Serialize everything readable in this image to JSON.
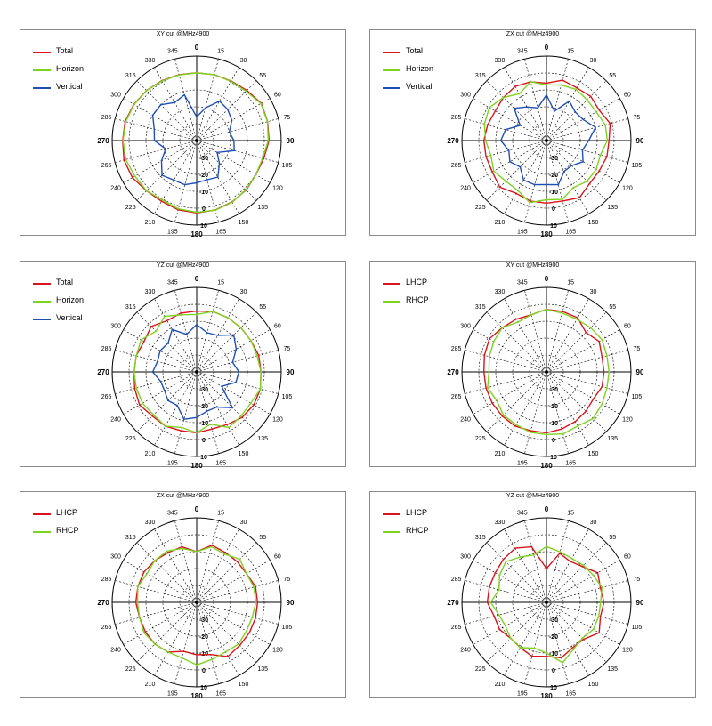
{
  "colors": {
    "Total": "#d9141c",
    "Horizon": "#7ed321",
    "Vertical": "#1f4fb5",
    "LHCP": "#d9141c",
    "RHCP": "#7ed321"
  },
  "angle_labels": [
    "0",
    "15",
    "30",
    "55",
    "60",
    "75",
    "90",
    "105",
    "120",
    "135",
    "150",
    "165",
    "180",
    "195",
    "210",
    "225",
    "240",
    "265",
    "270",
    "285",
    "300",
    "315",
    "330",
    "345"
  ],
  "ring_labels": [
    "-30",
    "-20",
    "-10",
    "0",
    "10"
  ],
  "chart_data": [
    {
      "type": "polar-line",
      "title": "XY cut @MHz4900",
      "series": [
        {
          "name": "Total",
          "values": [
            0.1,
            0.4,
            0.7,
            2.0,
            4.1,
            3.4,
            2.8,
            1.1,
            0.4,
            1.4,
            1.9,
            2.5,
            2.8,
            2.4,
            1.5,
            2.0,
            3.9,
            4.5,
            3.8,
            3.8,
            2.9,
            1.9,
            1.0,
            0.4
          ]
        },
        {
          "name": "Horizon",
          "values": [
            0.0,
            0.4,
            0.5,
            1.3,
            3.8,
            3.3,
            2.3,
            0.4,
            0.4,
            1.1,
            2.1,
            2.6,
            2.4,
            1.8,
            0.6,
            1.9,
            2.2,
            3.4,
            3.6,
            3.4,
            2.7,
            1.8,
            0.8,
            0.2
          ]
        },
        {
          "name": "Vertical",
          "values": [
            -26,
            -20,
            -13,
            -14,
            -16,
            -20,
            -18,
            -17,
            -26,
            -21,
            -15,
            -16,
            -15,
            -13,
            -13,
            -11,
            -16,
            -21,
            -15,
            -14,
            -10,
            -10,
            -14,
            -12
          ]
        }
      ]
    },
    {
      "type": "polar-line",
      "title": "ZX cut @MHz4900",
      "series": [
        {
          "name": "Total",
          "values": [
            -6,
            -3,
            -4,
            -3,
            -4,
            -1,
            -3,
            -3,
            -4,
            -4,
            -1,
            -3,
            -3,
            -3,
            -4,
            -1,
            -3,
            -3,
            -3,
            -4,
            -5,
            -4,
            -3,
            -4
          ]
        },
        {
          "name": "Horizon",
          "values": [
            -7,
            -6,
            -5,
            -6,
            -6,
            -4,
            -4,
            -7,
            -6,
            -6,
            -8,
            -4,
            -5,
            -2,
            -6,
            -6,
            -4,
            -6,
            -4,
            -2,
            -1,
            -4,
            -8,
            -4
          ]
        },
        {
          "name": "Vertical",
          "values": [
            -13,
            -22,
            -13,
            -16,
            -15,
            -10,
            -15,
            -18,
            -15,
            -19,
            -19,
            -13,
            -14,
            -13,
            -13,
            -18,
            -15,
            -17,
            -13,
            -15,
            -22,
            -13,
            -17,
            -20
          ]
        }
      ]
    },
    {
      "type": "polar-line",
      "title": "YZ cut @MHz4900",
      "series": [
        {
          "name": "Total",
          "values": [
            -4,
            -3,
            -3,
            -3,
            -3,
            -2,
            -2,
            -1,
            -1,
            -2,
            -4,
            -5,
            -4,
            -4,
            -3,
            -3,
            -1,
            -2,
            -3,
            -3,
            -4,
            -2,
            -5,
            -4
          ]
        },
        {
          "name": "Horizon",
          "values": [
            -6,
            -3,
            -3,
            -3,
            -3,
            -3,
            -2,
            -1,
            -3,
            -3,
            -2,
            -8,
            -4,
            -6,
            -3,
            -4,
            -3,
            -3,
            -3,
            -3,
            -2,
            -6,
            -2,
            -5
          ]
        },
        {
          "name": "Vertical",
          "values": [
            -12,
            -16,
            -15,
            -9,
            -13,
            -18,
            -15,
            -16,
            -23,
            -10,
            -16,
            -16,
            -13,
            -11,
            -17,
            -16,
            -18,
            -18,
            -14,
            -16,
            -15,
            -16,
            -11,
            -17
          ]
        }
      ]
    },
    {
      "type": "polar-line",
      "title": "XY cut @MHz4900",
      "series": [
        {
          "name": "LHCP",
          "values": [
            -3,
            -3,
            -3,
            -7,
            -4,
            -6,
            -6,
            -6,
            -8,
            -7,
            -6,
            -5,
            -4,
            -4,
            -3,
            -3,
            -3,
            -3,
            -3,
            -2,
            -1,
            -3,
            -4,
            -5
          ]
        },
        {
          "name": "RHCP",
          "values": [
            -3,
            -4,
            -4,
            -3,
            -2,
            -3,
            -3,
            -3,
            -2,
            -1,
            -3,
            -2,
            -3,
            -3,
            -4,
            -4,
            -6,
            -4,
            -6,
            -5,
            -4,
            -3,
            -6,
            -5
          ]
        }
      ]
    },
    {
      "type": "polar-line",
      "title": "ZX cut @MHz4900",
      "series": [
        {
          "name": "LHCP",
          "values": [
            -10,
            -5,
            -6,
            -6,
            -6,
            -4,
            -4,
            -4,
            -4,
            -4,
            -3,
            -8,
            -9,
            -10,
            -6,
            -5,
            -5,
            -5,
            -4,
            -4,
            -4,
            -5,
            -6,
            -6
          ]
        },
        {
          "name": "RHCP",
          "values": [
            -10,
            -6,
            -7,
            -4,
            -6,
            -5,
            -5,
            -6,
            -6,
            -5,
            -6,
            -5,
            -3,
            -6,
            -6,
            -5,
            -4,
            -5,
            -5,
            -4,
            -6,
            -5,
            -5,
            -7
          ]
        }
      ]
    },
    {
      "type": "polar-line",
      "title": "YZ cut @MHz4900",
      "series": [
        {
          "name": "LHCP",
          "values": [
            -20,
            -10,
            -12,
            -10,
            -5,
            -7,
            -6,
            -7,
            -4,
            -9,
            -9,
            -6,
            -8,
            -7,
            -9,
            -10,
            -8,
            -8,
            -5,
            -5,
            -5,
            -4,
            -3,
            -6
          ]
        },
        {
          "name": "RHCP",
          "values": [
            -7,
            -9,
            -10,
            -9,
            -8,
            -6,
            -8,
            -8,
            -8,
            -10,
            -8,
            -3,
            -10,
            -12,
            -9,
            -10,
            -12,
            -11,
            -7,
            -11,
            -8,
            -6,
            -9,
            -11
          ]
        }
      ]
    }
  ]
}
